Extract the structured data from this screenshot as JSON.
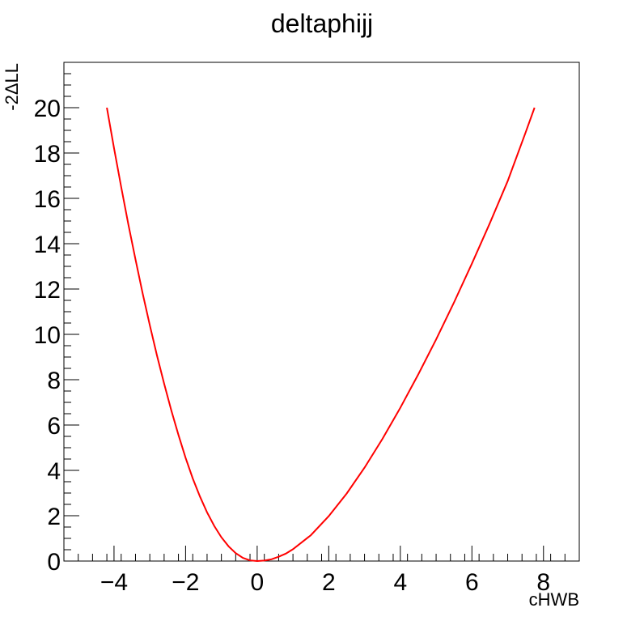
{
  "chart_data": {
    "type": "line",
    "title": "deltaphijj",
    "xlabel": "cHWB",
    "ylabel": "-2ΔLL",
    "xlim": [
      -5.4,
      9.0
    ],
    "ylim": [
      0,
      22
    ],
    "x_ticks": [
      -4,
      -2,
      0,
      2,
      4,
      6,
      8
    ],
    "x_tick_labels": [
      "−4",
      "−2",
      "0",
      "2",
      "4",
      "6",
      "8"
    ],
    "y_ticks": [
      0,
      2,
      4,
      6,
      8,
      10,
      12,
      14,
      16,
      18,
      20
    ],
    "y_tick_labels": [
      "0",
      "2",
      "4",
      "6",
      "8",
      "10",
      "12",
      "14",
      "16",
      "18",
      "20"
    ],
    "grid": false,
    "series": [
      {
        "color": "#ff0000",
        "x": [
          -4.2,
          -4.0,
          -3.8,
          -3.6,
          -3.4,
          -3.2,
          -3.0,
          -2.8,
          -2.6,
          -2.4,
          -2.2,
          -2.0,
          -1.8,
          -1.6,
          -1.4,
          -1.2,
          -1.0,
          -0.8,
          -0.6,
          -0.4,
          -0.2,
          0.0,
          0.2,
          0.4,
          0.6,
          0.8,
          1.0,
          1.5,
          2.0,
          2.5,
          3.0,
          3.5,
          4.0,
          4.5,
          5.0,
          5.5,
          6.0,
          6.5,
          7.0,
          7.5,
          7.75
        ],
        "y": [
          20.0,
          18.22,
          16.5,
          14.86,
          13.3,
          11.81,
          10.4,
          9.07,
          7.82,
          6.65,
          5.56,
          4.55,
          3.64,
          2.85,
          2.15,
          1.55,
          1.05,
          0.65,
          0.35,
          0.14,
          0.03,
          0.0,
          0.02,
          0.08,
          0.19,
          0.33,
          0.52,
          1.14,
          1.98,
          2.98,
          4.12,
          5.39,
          6.76,
          8.23,
          9.78,
          11.41,
          13.12,
          14.9,
          16.76,
          18.9,
          20.0
        ]
      }
    ]
  }
}
